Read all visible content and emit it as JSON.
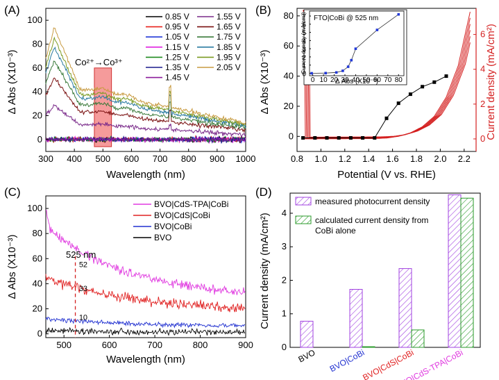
{
  "chart_data": [
    {
      "panel": "(A)",
      "type": "line",
      "xlabel": "Wavelength (nm)",
      "ylabel": "Δ Abs (X10⁻³)",
      "xlim": [
        300,
        1000
      ],
      "ylim": [
        -10,
        110
      ],
      "xticks": [
        300,
        400,
        500,
        600,
        700,
        800,
        900,
        1000
      ],
      "yticks": [
        0,
        20,
        40,
        60,
        80,
        100
      ],
      "annotation": "Co²⁺→Co³⁺",
      "highlight_range_nm": [
        470,
        530
      ],
      "series": [
        {
          "name": "0.85 V",
          "color": "#000000",
          "level": 0
        },
        {
          "name": "0.95 V",
          "color": "#e8201a",
          "level": 0
        },
        {
          "name": "1.05 V",
          "color": "#2138d8",
          "level": 0
        },
        {
          "name": "1.15 V",
          "color": "#e020e0",
          "level": 0
        },
        {
          "name": "1.25 V",
          "color": "#1e8a1e",
          "level": 0
        },
        {
          "name": "1.35 V",
          "color": "#1a1a8c",
          "level": 0
        },
        {
          "name": "1.45 V",
          "color": "#8a1a9a",
          "level": 0
        },
        {
          "name": "1.55 V",
          "color": "#7a2a8a",
          "level": 12
        },
        {
          "name": "1.65 V",
          "color": "#7a1010",
          "level": 22
        },
        {
          "name": "1.75 V",
          "color": "#3a7a3a",
          "level": 28
        },
        {
          "name": "1.85 V",
          "color": "#2a7aa0",
          "level": 33
        },
        {
          "name": "1.95 V",
          "color": "#7a9a20",
          "level": 36
        },
        {
          "name": "2.05 V",
          "color": "#c89a40",
          "level": 40
        }
      ]
    },
    {
      "panel": "(B)",
      "type": "line",
      "xlabel": "Potential (V vs. RHE)",
      "ylabel": "Δ Abs (X10⁻³)",
      "ylabel_right": "Current density (mA/cm²)",
      "xlim": [
        0.8,
        2.3
      ],
      "ylim": [
        -10,
        85
      ],
      "ylim_right": [
        -0.72,
        7.5
      ],
      "xticks": [
        0.8,
        1.0,
        1.2,
        1.4,
        1.6,
        1.8,
        2.0,
        2.2
      ],
      "yticks": [
        0,
        20,
        40,
        60,
        80
      ],
      "yticks_right": [
        0,
        2,
        4,
        6
      ],
      "abs_series": {
        "name": "Δ Abs",
        "color": "#000000",
        "x": [
          0.85,
          0.95,
          1.05,
          1.15,
          1.25,
          1.35,
          1.45,
          1.55,
          1.65,
          1.75,
          1.85,
          1.95,
          2.05
        ],
        "y": [
          -1,
          -1,
          -1,
          -1,
          -1,
          -1,
          -1,
          12,
          22,
          28,
          33,
          36,
          40
        ]
      },
      "cv_series": {
        "name": "Current density",
        "color": "#d42020",
        "onset_V": 1.55,
        "x": [
          0.85,
          1.45,
          1.55,
          1.65,
          1.75,
          1.85,
          1.95,
          2.05,
          2.15,
          2.25
        ],
        "y": [
          0.0,
          0.02,
          0.05,
          0.15,
          0.35,
          0.7,
          1.3,
          2.4,
          4.2,
          7.3
        ]
      },
      "inset": {
        "title": "FTO|CoBi @ 525 nm",
        "xlabel": "Δ Abs (X10⁻³)",
        "ylabel": "Current density (mA/cm²)",
        "xlim": [
          -3,
          85
        ],
        "ylim": [
          -0.3,
          7.6
        ],
        "xticks": [
          0,
          10,
          20,
          30,
          40,
          50,
          60,
          70,
          80
        ],
        "yticks": [
          0,
          1,
          2,
          3,
          4,
          5,
          6,
          7
        ],
        "x": [
          -1,
          12,
          22,
          28,
          33,
          36,
          40,
          60,
          80
        ],
        "y": [
          0.0,
          0.02,
          0.1,
          0.3,
          0.8,
          1.6,
          3.0,
          5.3,
          7.2
        ]
      }
    },
    {
      "panel": "(C)",
      "type": "line",
      "xlabel": "Wavelength (nm)",
      "ylabel": "Δ Abs (X10⁻³)",
      "xlim": [
        460,
        900
      ],
      "ylim": [
        -3,
        110
      ],
      "xticks": [
        500,
        600,
        700,
        800,
        900
      ],
      "yticks": [
        0,
        20,
        40,
        60,
        80,
        100
      ],
      "marker_label": "525 nm",
      "marker_nm": 525,
      "point_labels": [
        {
          "text": "52",
          "nm": 530,
          "y": 52
        },
        {
          "text": "33",
          "nm": 530,
          "y": 33
        },
        {
          "text": "10",
          "nm": 530,
          "y": 10
        }
      ],
      "series": [
        {
          "name": "BVO|CdS-TPA|CoBi",
          "color": "#e03ae0",
          "start": 85,
          "end": 27
        },
        {
          "name": "BVO|CdS|CoBi",
          "color": "#e02020",
          "start": 45,
          "end": 18
        },
        {
          "name": "BVO|CoBi",
          "color": "#2030d0",
          "start": 12,
          "end": 6
        },
        {
          "name": "BVO",
          "color": "#000000",
          "start": 3,
          "end": 1
        }
      ]
    },
    {
      "panel": "(D)",
      "type": "bar",
      "ylabel": "Current density (mA/cm²)",
      "ylim": [
        0,
        4.6
      ],
      "yticks": [
        0,
        1,
        2,
        3,
        4
      ],
      "categories": [
        "BVO",
        "BVO|CoBi",
        "BVO|CdS|CoBi",
        "BVO|CdS-TPA|CoBi"
      ],
      "category_colors": [
        "#000000",
        "#2030d0",
        "#e02020",
        "#e03ae0"
      ],
      "series": [
        {
          "name": "measured photocurrent density",
          "color": "#a040e0",
          "values": [
            0.78,
            1.73,
            2.35,
            4.55
          ]
        },
        {
          "name": "calculated current density from CoBi alone",
          "color": "#2a9a2a",
          "values": [
            null,
            0.02,
            0.52,
            4.45
          ]
        }
      ],
      "legend_line2": "CoBi alone"
    }
  ]
}
